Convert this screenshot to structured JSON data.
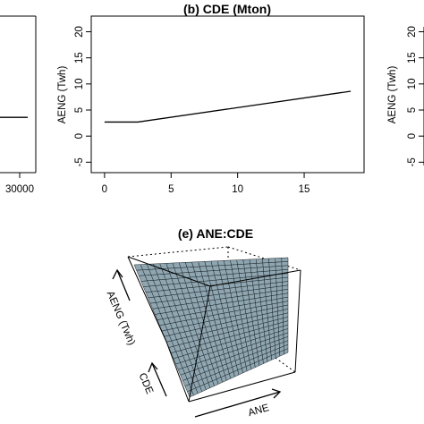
{
  "chart_data": [
    {
      "panel": "left (partial)",
      "type": "line",
      "title": "",
      "xlabel": "",
      "ylabel": "",
      "x_ticks": [
        "30000"
      ],
      "x": [
        0,
        31000
      ],
      "y": [
        3.6,
        3.6
      ],
      "ylim": [
        -7,
        23
      ],
      "grid": false
    },
    {
      "panel": "b",
      "type": "line",
      "title": "(b) CDE (Mton)",
      "xlabel": "",
      "ylabel": "AENG (Twh)",
      "x_ticks": [
        0,
        5,
        10,
        15
      ],
      "y_ticks": [
        -5,
        0,
        5,
        10,
        15,
        20
      ],
      "xlim": [
        -1,
        19.5
      ],
      "ylim": [
        -7,
        23
      ],
      "x": [
        0,
        2.5,
        18.5
      ],
      "y": [
        2.7,
        2.7,
        8.6
      ],
      "grid": false
    },
    {
      "panel": "right (partial)",
      "type": "line",
      "title": "",
      "xlabel": "",
      "ylabel": "AENG (Twh)",
      "y_ticks": [
        -5,
        0,
        5,
        10,
        15,
        20
      ],
      "ylim": [
        -7,
        23
      ],
      "grid": false
    },
    {
      "panel": "e",
      "type": "surface3d",
      "title": "(e) ANE:CDE",
      "xlabel": "ANE",
      "ylabel": "CDE",
      "zlabel": "AENG (Twh)",
      "grid_n": 24,
      "surface_color": "#8fa6b1",
      "mesh_color": "#1a2328"
    }
  ]
}
